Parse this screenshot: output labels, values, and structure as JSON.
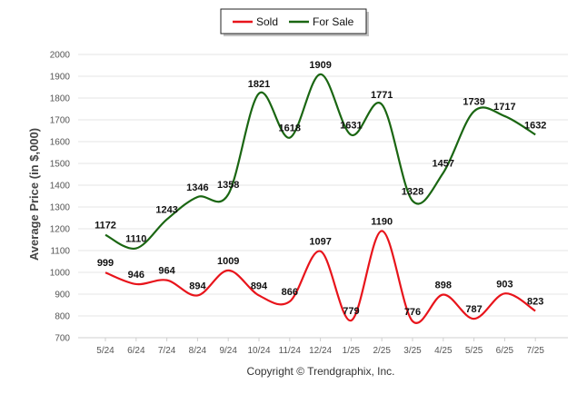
{
  "chart_data": {
    "type": "line",
    "ylabel": "Average Price (in $,000)",
    "credit": "Copyright © Trendgraphix, Inc.",
    "ylim": [
      700,
      2000
    ],
    "yticks": [
      700,
      800,
      900,
      1000,
      1100,
      1200,
      1300,
      1400,
      1500,
      1600,
      1700,
      1800,
      1900,
      2000
    ],
    "categories": [
      "5/24",
      "6/24",
      "7/24",
      "8/24",
      "9/24",
      "10/24",
      "11/24",
      "12/24",
      "1/25",
      "2/25",
      "3/25",
      "4/25",
      "5/25",
      "6/25",
      "7/25"
    ],
    "legend_position": "top-center",
    "grid": "horizontal",
    "series": [
      {
        "name": "Sold",
        "color": "#e8141b",
        "values": [
          999,
          946,
          964,
          894,
          1009,
          894,
          866,
          1097,
          779,
          1190,
          776,
          898,
          787,
          903,
          823
        ]
      },
      {
        "name": "For Sale",
        "color": "#1a6612",
        "values": [
          1172,
          1110,
          1243,
          1346,
          1358,
          1821,
          1618,
          1909,
          1631,
          1771,
          1328,
          1457,
          1739,
          1717,
          1632
        ]
      }
    ]
  }
}
